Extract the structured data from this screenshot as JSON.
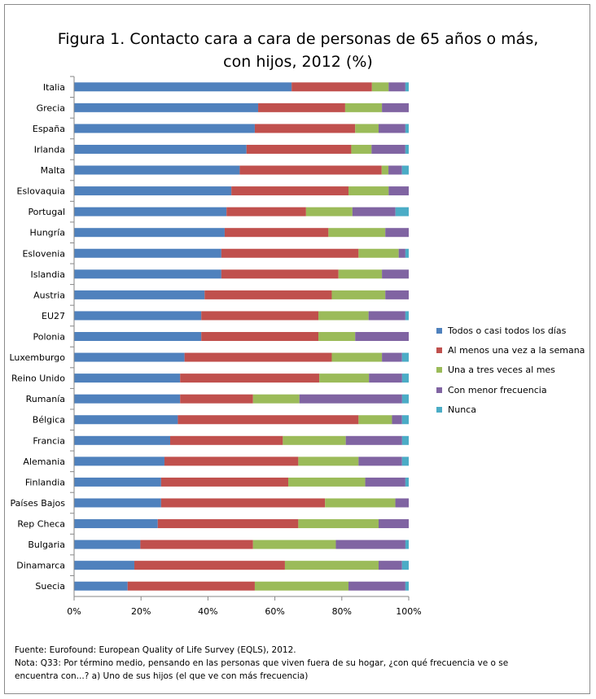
{
  "chart_data": {
    "type": "bar",
    "orientation": "horizontal",
    "stacked": true,
    "title": "Figura 1. Contacto cara a cara de personas de 65 años o más, con hijos, 2012 (%)",
    "title_lines": [
      "Figura 1. Contacto cara a cara de personas de 65 años o más,",
      "con hijos, 2012 (%)"
    ],
    "xlim": [
      0,
      100
    ],
    "x_ticks": [
      "0%",
      "20%",
      "40%",
      "60%",
      "80%",
      "100%"
    ],
    "grid": false,
    "legend_position": "right",
    "categories": [
      "Italia",
      "Grecia",
      "España",
      "Irlanda",
      "Malta",
      "Eslovaquia",
      "Portugal",
      "Hungría",
      "Eslovenia",
      "Islandia",
      "Austria",
      "EU27",
      "Polonia",
      "Luxemburgo",
      "Reino Unido",
      "Rumanía",
      "Bélgica",
      "Francia",
      "Alemania",
      "Finlandia",
      "Países Bajos",
      "Rep Checa",
      "Bulgaria",
      "Dinamarca",
      "Suecia"
    ],
    "series": [
      {
        "name": "Todos o casi todos los días",
        "color": "#4f81bd",
        "values": [
          65,
          55,
          54,
          51,
          49,
          47,
          46,
          45,
          44,
          44,
          39,
          38,
          38,
          33,
          32,
          32,
          31,
          29,
          27,
          26,
          26,
          25,
          20,
          18,
          16
        ]
      },
      {
        "name": "Al menos una vez a la semana",
        "color": "#c0504d",
        "values": [
          24,
          26,
          30,
          31,
          42,
          35,
          24,
          31,
          41,
          35,
          38,
          35,
          35,
          44,
          42,
          22,
          54,
          34,
          40,
          38,
          49,
          42,
          34,
          45,
          38
        ]
      },
      {
        "name": "Una a tres veces al mes",
        "color": "#9bbb59",
        "values": [
          5,
          11,
          7,
          6,
          2,
          12,
          14,
          17,
          12,
          13,
          16,
          15,
          11,
          15,
          15,
          14,
          10,
          19,
          18,
          23,
          21,
          24,
          25,
          28,
          28
        ]
      },
      {
        "name": "Con menor frecuencia",
        "color": "#8064a2",
        "values": [
          5,
          8,
          8,
          10,
          4,
          6,
          13,
          7,
          2,
          8,
          7,
          11,
          16,
          6,
          10,
          31,
          3,
          17,
          13,
          12,
          4,
          9,
          21,
          7,
          17
        ]
      },
      {
        "name": "Nunca",
        "color": "#4bacc6",
        "values": [
          1,
          0,
          1,
          1,
          2,
          0,
          4,
          0,
          1,
          0,
          0,
          1,
          0,
          2,
          2,
          2,
          2,
          2,
          2,
          1,
          0,
          0,
          1,
          2,
          1
        ]
      }
    ]
  },
  "footnotes": {
    "source": "Fuente: Eurofound: European Quality of Life Survey (EQLS), 2012.",
    "note_line1": "Nota: Q33: Por término medio, pensando en las personas que viven fuera de su hogar, ¿con qué frecuencia ve o se",
    "note_line2": "encuentra con...? a) Uno de sus hijos (el que ve con más frecuencia)"
  }
}
